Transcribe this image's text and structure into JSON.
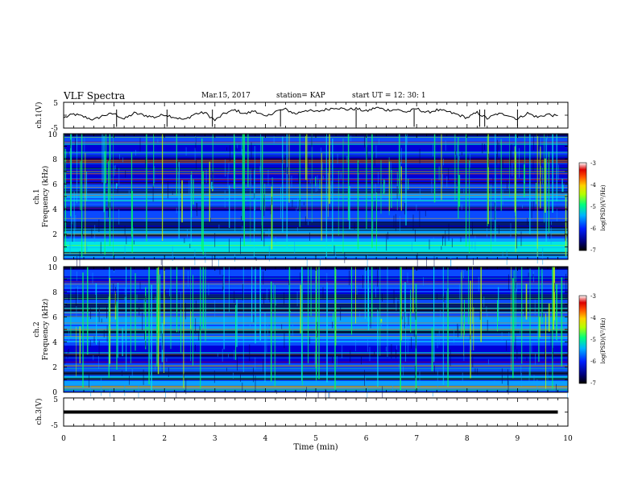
{
  "header": {
    "title": "VLF Spectra",
    "date": "Mar.15, 2017",
    "station": "station= KAP",
    "start_ut": "start  UT =   12: 30: 1"
  },
  "colors": {
    "spectrogram_palette": [
      "#00007a",
      "#0000d8",
      "#0a4aff",
      "#0aa0ff",
      "#00e6e6",
      "#00ff66",
      "#b4ff00",
      "#ffd200",
      "#ff6600",
      "#dc0000",
      "#ffffff"
    ],
    "ch1_trace": "#000000",
    "ch3_trace": "#000000"
  },
  "chart_data": [
    {
      "type": "line",
      "name": "ch1-waveform",
      "ylabel": "ch.1(V)",
      "xlim": [
        0,
        10
      ],
      "ylim": [
        -5,
        5
      ],
      "yticks": [
        "5",
        "-5"
      ],
      "x": [
        0,
        0.2,
        0.4,
        0.6,
        0.8,
        1.0,
        1.2,
        1.4,
        1.6,
        1.8,
        2.0,
        2.2,
        2.4,
        2.6,
        2.8,
        3.0,
        3.2,
        3.4,
        3.6,
        3.8,
        4.0,
        4.2,
        4.4,
        4.6,
        4.8,
        5.0,
        5.2,
        5.4,
        5.6,
        5.8,
        6.0,
        6.2,
        6.4,
        6.6,
        6.8,
        7.0,
        7.2,
        7.4,
        7.6,
        7.8,
        8.0,
        8.2,
        8.4,
        8.6,
        8.8,
        9.0,
        9.2,
        9.4,
        9.6,
        9.8
      ],
      "y": [
        -1.0,
        0.4,
        -0.6,
        -1.8,
        0.0,
        0.6,
        -1.5,
        0.8,
        0.0,
        -0.8,
        0.3,
        -0.8,
        -1.8,
        0.5,
        1.0,
        -2.0,
        0.8,
        2.0,
        0.5,
        1.8,
        -0.8,
        1.5,
        2.3,
        0.5,
        2.0,
        1.3,
        2.2,
        3.0,
        2.2,
        2.5,
        1.5,
        3.0,
        2.0,
        2.2,
        1.2,
        2.5,
        1.0,
        2.0,
        1.4,
        0.3,
        -1.0,
        1.0,
        -1.3,
        0.5,
        0.2,
        -1.5,
        0.8,
        -0.8,
        0.4,
        -0.5
      ]
    },
    {
      "type": "heatmap",
      "name": "ch1-spectrogram",
      "ylabel": "Frequency  (kHz)",
      "channel_label": "ch.1",
      "xlim": [
        0,
        10
      ],
      "ylim": [
        0,
        10
      ],
      "yticks": [
        "0",
        "2",
        "4",
        "6",
        "8",
        "10"
      ],
      "colorbar": {
        "label": "log(PSD)(V²/Hz)",
        "range": [
          -7,
          -3
        ],
        "ticks": [
          "-3",
          "-4",
          "-5",
          "-6",
          "-7"
        ]
      },
      "band_profile_khz": [
        [
          0.3,
          0.55
        ],
        [
          0.9,
          0.7
        ],
        [
          1.5,
          0.45
        ],
        [
          2.2,
          0.5
        ],
        [
          3.0,
          0.35
        ],
        [
          3.6,
          0.3
        ],
        [
          4.4,
          0.35
        ],
        [
          5.0,
          0.5
        ],
        [
          5.7,
          0.35
        ],
        [
          6.8,
          0.15
        ],
        [
          7.5,
          0.2
        ],
        [
          8.5,
          0.3
        ],
        [
          9.5,
          0.38
        ]
      ]
    },
    {
      "type": "heatmap",
      "name": "ch2-spectrogram",
      "ylabel": "Frequency  (kHz)",
      "channel_label": "ch.2",
      "xlim": [
        0,
        10
      ],
      "ylim": [
        0,
        10
      ],
      "yticks": [
        "0",
        "2",
        "4",
        "6",
        "8",
        "10"
      ],
      "colorbar": {
        "label": "log(PSD)(V²/Hz)",
        "range": [
          -7,
          -3
        ],
        "ticks": [
          "-3",
          "-4",
          "-5",
          "-6",
          "-7"
        ]
      },
      "band_profile_khz": [
        [
          0.3,
          0.5
        ],
        [
          1.0,
          0.5
        ],
        [
          1.8,
          0.35
        ],
        [
          2.5,
          0.2
        ],
        [
          3.3,
          0.3
        ],
        [
          4.2,
          0.45
        ],
        [
          5.0,
          0.6
        ],
        [
          5.8,
          0.55
        ],
        [
          6.6,
          0.45
        ],
        [
          7.5,
          0.4
        ],
        [
          8.5,
          0.4
        ],
        [
          9.5,
          0.45
        ]
      ]
    },
    {
      "type": "line",
      "name": "ch3-waveform",
      "ylabel": "ch.3(V)",
      "xlabel": "Time  (min)",
      "xlim": [
        0,
        10
      ],
      "ylim": [
        -5,
        5
      ],
      "yticks": [
        "5",
        "-5"
      ],
      "xticks": [
        "0",
        "1",
        "2",
        "3",
        "4",
        "5",
        "6",
        "7",
        "8",
        "9",
        "10"
      ],
      "x": [
        0,
        9.8
      ],
      "y": [
        0.0,
        0.0
      ]
    }
  ]
}
